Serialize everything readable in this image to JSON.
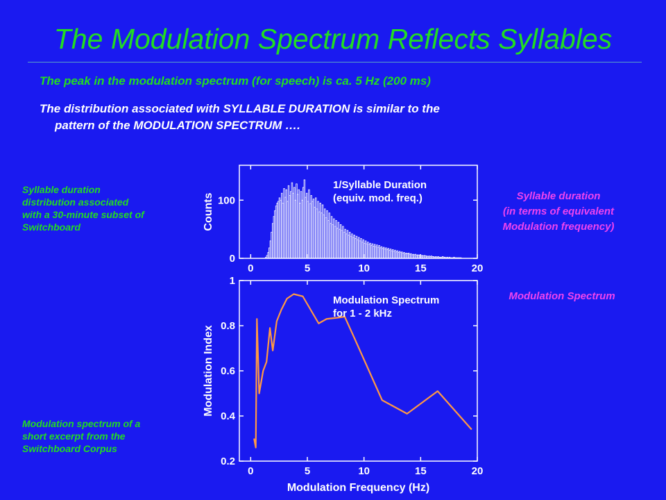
{
  "slide": {
    "title": "The Modulation Spectrum Reflects Syllables",
    "bullet1": "The peak in the modulation spectrum (for speech) is ca. 5 Hz (200 ms)",
    "bullet2_line1": "The distribution associated with SYLLABLE DURATION is similar to the",
    "bullet2_line2": "pattern of the MODULATION SPECTRUM ….",
    "left_note_top": [
      "Syllable duration",
      "distribution associated",
      "with a 30-minute subset of",
      "Switchboard"
    ],
    "left_note_bottom": [
      "Modulation spectrum of a",
      "short excerpt from the",
      "Switchboard Corpus"
    ],
    "right_label_top": [
      "Syllable duration",
      "(in terms of equivalent",
      "Modulation frequency)"
    ],
    "right_label_bottom": "Modulation Spectrum",
    "colors": {
      "background": "#1a1af0",
      "green": "#22dd22",
      "magenta": "#ee44ee",
      "curve": "#ff9944",
      "axes": "#ffffff"
    }
  },
  "chart_data": [
    {
      "type": "bar",
      "legend": [
        "1/Syllable Duration",
        "(equiv. mod. freq.)"
      ],
      "xlabel": "",
      "ylabel": "Counts",
      "xlim": [
        -1,
        20
      ],
      "ylim": [
        0,
        160
      ],
      "xticks": [
        0,
        5,
        10,
        15,
        20
      ],
      "yticks": [
        0,
        100
      ],
      "bin_width": 0.1,
      "x_start": 1.3,
      "values": [
        2,
        5,
        10,
        18,
        30,
        45,
        60,
        72,
        82,
        90,
        95,
        98,
        104,
        100,
        112,
        95,
        120,
        105,
        118,
        98,
        125,
        108,
        115,
        130,
        112,
        122,
        100,
        128,
        110,
        118,
        95,
        115,
        100,
        122,
        135,
        105,
        112,
        98,
        118,
        94,
        108,
        98,
        102,
        88,
        104,
        85,
        98,
        80,
        95,
        78,
        92,
        75,
        85,
        70,
        82,
        65,
        78,
        60,
        72,
        58,
        68,
        55,
        65,
        52,
        62,
        50,
        58,
        48,
        55,
        45,
        50,
        42,
        48,
        40,
        45,
        38,
        42,
        36,
        40,
        34,
        38,
        32,
        36,
        30,
        34,
        28,
        32,
        26,
        30,
        25,
        28,
        24,
        26,
        22,
        25,
        21,
        24,
        20,
        23,
        19,
        22,
        18,
        20,
        17,
        19,
        16,
        18,
        15,
        17,
        14,
        16,
        13,
        15,
        12,
        14,
        11,
        13,
        10,
        12,
        10,
        11,
        9,
        10,
        8,
        9,
        8,
        9,
        7,
        8,
        6,
        7,
        6,
        7,
        5,
        6,
        5,
        6,
        4,
        5,
        4,
        5,
        4,
        4,
        3,
        4,
        3,
        4,
        3,
        3,
        2,
        3,
        2,
        3,
        2,
        2,
        2,
        3,
        2,
        2,
        1,
        2,
        1,
        2,
        1,
        1,
        1,
        2,
        1,
        1,
        1,
        1,
        1,
        1
      ]
    },
    {
      "type": "line",
      "legend": [
        "Modulation Spectrum",
        "for 1 - 2 kHz"
      ],
      "xlabel": "Modulation Frequency (Hz)",
      "ylabel": "Modulation Index",
      "xlim": [
        -1,
        20
      ],
      "ylim": [
        0.2,
        1.0
      ],
      "xticks": [
        0,
        5,
        10,
        15,
        20
      ],
      "yticks": [
        0.2,
        0.4,
        0.6,
        0.8,
        1
      ],
      "x": [
        0.3,
        0.45,
        0.55,
        0.75,
        1.1,
        1.4,
        1.7,
        1.95,
        2.3,
        2.7,
        3.2,
        3.8,
        4.6,
        5.3,
        6.0,
        6.7,
        7.6,
        8.3,
        9.2,
        10.0,
        11.6,
        13.8,
        16.5,
        19.5
      ],
      "y": [
        0.3,
        0.26,
        0.83,
        0.5,
        0.6,
        0.64,
        0.79,
        0.69,
        0.82,
        0.87,
        0.92,
        0.94,
        0.93,
        0.87,
        0.81,
        0.83,
        0.835,
        0.84,
        0.74,
        0.65,
        0.47,
        0.41,
        0.51,
        0.34
      ]
    }
  ]
}
